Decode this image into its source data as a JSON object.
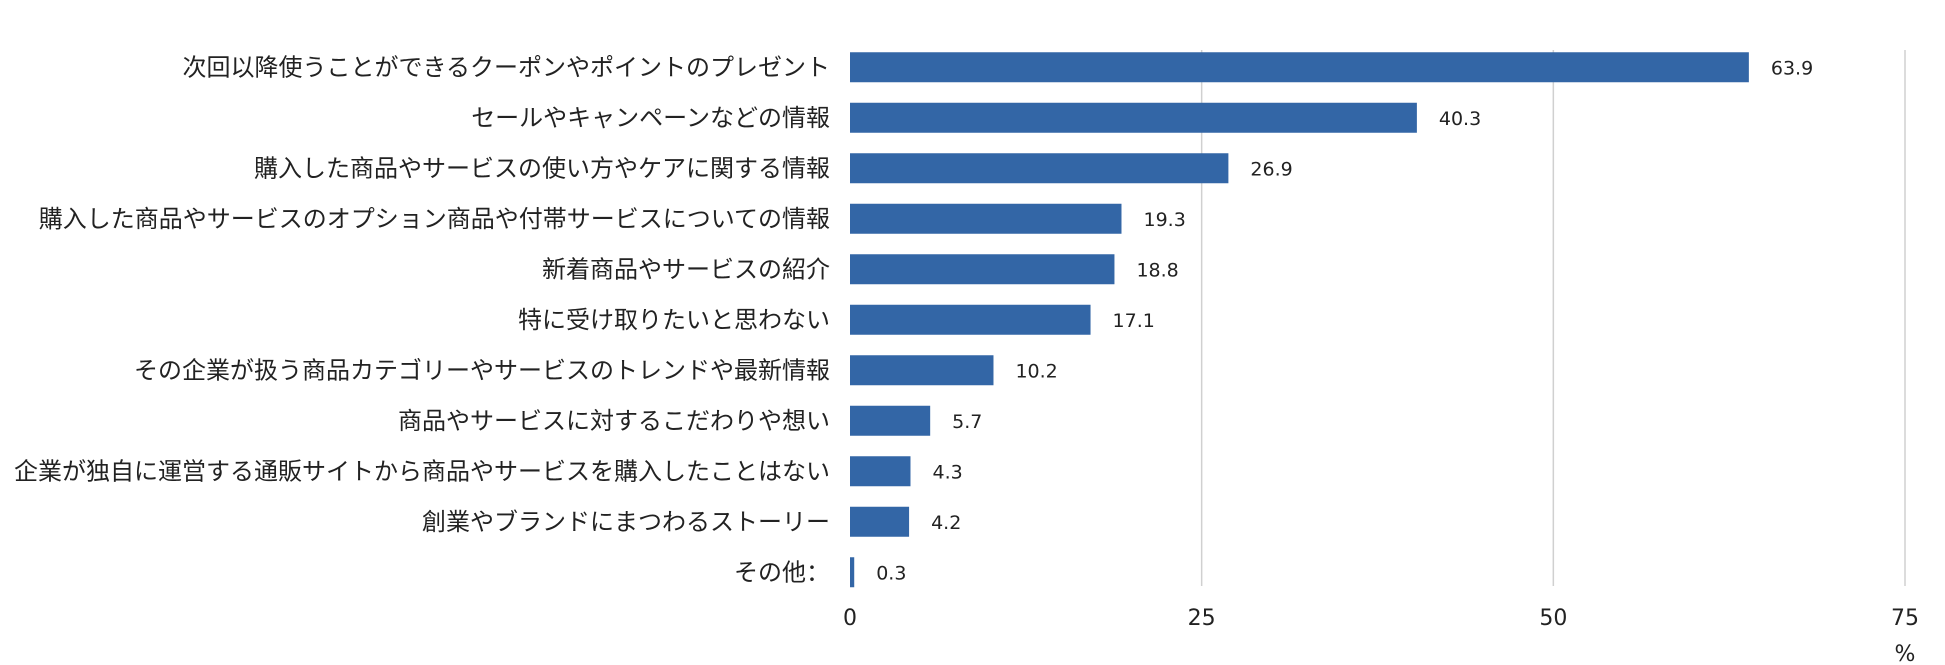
{
  "chart_data": {
    "type": "bar",
    "orientation": "horizontal",
    "categories": [
      "次回以降使うことができるクーポンやポイントのプレゼント",
      "セールやキャンペーンなどの情報",
      "購入した商品やサービスの使い方やケアに関する情報",
      "購入した商品やサービスのオプション商品や付帯サービスについての情報",
      "新着商品やサービスの紹介",
      "特に受け取りたいと思わない",
      "その企業が扱う商品カテゴリーやサービスのトレンドや最新情報",
      "商品やサービスに対するこだわりや想い",
      "企業が独自に運営する通販サイトから商品やサービスを購入したことはない",
      "創業やブランドにまつわるストーリー",
      "その他："
    ],
    "values": [
      63.9,
      40.3,
      26.9,
      19.3,
      18.8,
      17.1,
      10.2,
      5.7,
      4.3,
      4.2,
      0.3
    ],
    "value_labels": [
      "63.9",
      "40.3",
      "26.9",
      "19.3",
      "18.8",
      "17.1",
      "10.2",
      "5.7",
      "4.3",
      "4.2",
      "0.3"
    ],
    "xlim": [
      0,
      75
    ],
    "xticks": [
      "0",
      "25",
      "50",
      "75"
    ],
    "xtick_values": [
      0,
      25,
      50,
      75
    ],
    "unit": "%",
    "grid": true,
    "bar_color": "#3366a6"
  }
}
